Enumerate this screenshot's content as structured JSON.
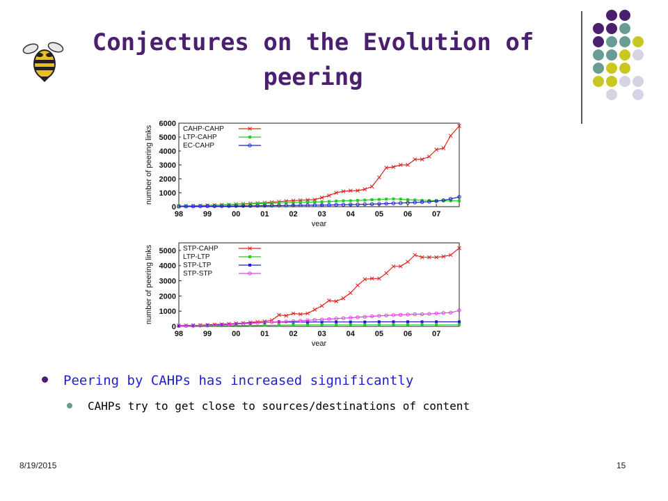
{
  "slide": {
    "title": "Conjectures on the Evolution of peering",
    "bullets": [
      "Peering by CAHPs has increased significantly",
      "CAHPs try to get close to sources/destinations of content"
    ],
    "footer_date": "8/19/2015",
    "page_number": "15"
  },
  "colors": {
    "title": "#4b1f6f",
    "bullet_main_text": "#1f1fd0",
    "dot_purple": "#4b1f6f",
    "dot_teal": "#6a9c96",
    "dot_olive": "#c8c820",
    "dot_lavender": "#d6d4e4"
  },
  "chart_data": [
    {
      "type": "line",
      "xlabel": "year",
      "ylabel": "number of peering links",
      "xlim": [
        98,
        107.8
      ],
      "ylim": [
        0,
        6000
      ],
      "xticks": [
        "98",
        "99",
        "00",
        "01",
        "02",
        "03",
        "04",
        "05",
        "06",
        "07"
      ],
      "yticks": [
        "0",
        "1000",
        "2000",
        "3000",
        "4000",
        "5000",
        "6000"
      ],
      "legend_position": "top-left",
      "series": [
        {
          "name": "CAHP-CAHP",
          "color": "#e0201c",
          "marker": "x",
          "x": [
            98,
            98.25,
            98.5,
            98.75,
            99,
            99.25,
            99.5,
            99.75,
            100,
            100.25,
            100.5,
            100.75,
            101,
            101.25,
            101.5,
            101.75,
            102,
            102.25,
            102.5,
            102.75,
            103,
            103.25,
            103.5,
            103.75,
            104,
            104.25,
            104.5,
            104.75,
            105,
            105.25,
            105.5,
            105.75,
            106,
            106.25,
            106.5,
            106.75,
            107,
            107.25,
            107.5,
            107.8
          ],
          "y": [
            50,
            60,
            70,
            80,
            100,
            110,
            130,
            150,
            180,
            200,
            230,
            260,
            290,
            320,
            360,
            400,
            430,
            460,
            480,
            500,
            650,
            800,
            1000,
            1100,
            1150,
            1150,
            1250,
            1450,
            2100,
            2800,
            2850,
            3000,
            3000,
            3400,
            3400,
            3600,
            4100,
            4200,
            5100,
            5800
          ]
        },
        {
          "name": "LTP-CAHP",
          "color": "#22cc22",
          "marker": "square",
          "x": [
            98,
            98.25,
            98.5,
            98.75,
            99,
            99.25,
            99.5,
            99.75,
            100,
            100.25,
            100.5,
            100.75,
            101,
            101.25,
            101.5,
            101.75,
            102,
            102.25,
            102.5,
            102.75,
            103,
            103.25,
            103.5,
            103.75,
            104,
            104.25,
            104.5,
            104.75,
            105,
            105.25,
            105.5,
            105.75,
            106,
            106.25,
            106.5,
            106.75,
            107,
            107.25,
            107.5,
            107.8
          ],
          "y": [
            40,
            50,
            60,
            70,
            90,
            110,
            120,
            140,
            160,
            180,
            200,
            220,
            240,
            250,
            270,
            290,
            300,
            310,
            320,
            330,
            350,
            370,
            400,
            420,
            430,
            450,
            470,
            500,
            520,
            540,
            560,
            540,
            500,
            480,
            460,
            440,
            430,
            420,
            420,
            420
          ]
        },
        {
          "name": "EC-CAHP",
          "color": "#1c1ccc",
          "marker": "circle",
          "x": [
            98,
            98.25,
            98.5,
            98.75,
            99,
            99.25,
            99.5,
            99.75,
            100,
            100.25,
            100.5,
            100.75,
            101,
            101.25,
            101.5,
            101.75,
            102,
            102.25,
            102.5,
            102.75,
            103,
            103.25,
            103.5,
            103.75,
            104,
            104.25,
            104.5,
            104.75,
            105,
            105.25,
            105.5,
            105.75,
            106,
            106.25,
            106.5,
            106.75,
            107,
            107.25,
            107.5,
            107.8
          ],
          "y": [
            10,
            15,
            20,
            25,
            30,
            35,
            40,
            45,
            50,
            55,
            60,
            65,
            70,
            75,
            80,
            85,
            90,
            95,
            100,
            105,
            110,
            120,
            130,
            140,
            150,
            160,
            170,
            180,
            200,
            220,
            240,
            260,
            280,
            300,
            330,
            360,
            400,
            460,
            560,
            700
          ]
        }
      ]
    },
    {
      "type": "line",
      "xlabel": "year",
      "ylabel": "number of peering links",
      "xlim": [
        98,
        107.8
      ],
      "ylim": [
        0,
        5500
      ],
      "xticks": [
        "98",
        "99",
        "00",
        "01",
        "02",
        "03",
        "04",
        "05",
        "06",
        "07"
      ],
      "yticks": [
        "0",
        "1000",
        "2000",
        "3000",
        "4000",
        "5000"
      ],
      "legend_position": "top-left",
      "series": [
        {
          "name": "STP-CAHP",
          "color": "#e0201c",
          "marker": "x",
          "x": [
            98,
            98.25,
            98.5,
            98.75,
            99,
            99.25,
            99.5,
            99.75,
            100,
            100.25,
            100.5,
            100.75,
            101,
            101.25,
            101.5,
            101.75,
            102,
            102.25,
            102.5,
            102.75,
            103,
            103.25,
            103.5,
            103.75,
            104,
            104.25,
            104.5,
            104.75,
            105,
            105.25,
            105.5,
            105.75,
            106,
            106.25,
            106.5,
            106.75,
            107,
            107.25,
            107.5,
            107.8
          ],
          "y": [
            50,
            60,
            70,
            80,
            100,
            120,
            140,
            160,
            190,
            220,
            260,
            300,
            330,
            400,
            750,
            700,
            850,
            800,
            850,
            1100,
            1350,
            1700,
            1650,
            1850,
            2200,
            2700,
            3100,
            3150,
            3150,
            3500,
            3950,
            3950,
            4250,
            4700,
            4550,
            4550,
            4550,
            4600,
            4700,
            5150
          ]
        },
        {
          "name": "LTP-LTP",
          "color": "#22cc22",
          "marker": "square",
          "x": [
            98,
            98.5,
            99,
            99.5,
            100,
            100.5,
            101,
            101.5,
            102,
            102.5,
            103,
            103.5,
            104,
            104.5,
            105,
            105.5,
            106,
            106.5,
            107,
            107.8
          ],
          "y": [
            20,
            25,
            30,
            40,
            50,
            60,
            70,
            80,
            90,
            95,
            100,
            100,
            100,
            100,
            100,
            100,
            100,
            100,
            100,
            100
          ]
        },
        {
          "name": "STP-LTP",
          "color": "#1c1ccc",
          "marker": "square",
          "x": [
            98,
            98.5,
            99,
            99.5,
            100,
            100.5,
            101,
            101.5,
            102,
            102.5,
            103,
            103.5,
            104,
            104.5,
            105,
            105.5,
            106,
            106.5,
            107,
            107.8
          ],
          "y": [
            30,
            50,
            80,
            120,
            170,
            220,
            260,
            280,
            280,
            280,
            290,
            290,
            290,
            290,
            300,
            300,
            300,
            300,
            300,
            300
          ]
        },
        {
          "name": "STP-STP",
          "color": "#e040e0",
          "marker": "circle",
          "x": [
            98,
            98.25,
            98.5,
            98.75,
            99,
            99.25,
            99.5,
            99.75,
            100,
            100.25,
            100.5,
            100.75,
            101,
            101.25,
            101.5,
            101.75,
            102,
            102.25,
            102.5,
            102.75,
            103,
            103.25,
            103.5,
            103.75,
            104,
            104.25,
            104.5,
            104.75,
            105,
            105.25,
            105.5,
            105.75,
            106,
            106.25,
            106.5,
            106.75,
            107,
            107.25,
            107.5,
            107.8
          ],
          "y": [
            20,
            30,
            40,
            50,
            60,
            80,
            100,
            120,
            150,
            180,
            200,
            230,
            250,
            280,
            300,
            320,
            340,
            370,
            400,
            420,
            450,
            480,
            510,
            540,
            570,
            600,
            630,
            660,
            690,
            720,
            740,
            760,
            780,
            800,
            800,
            820,
            850,
            880,
            900,
            1050
          ]
        }
      ]
    }
  ]
}
